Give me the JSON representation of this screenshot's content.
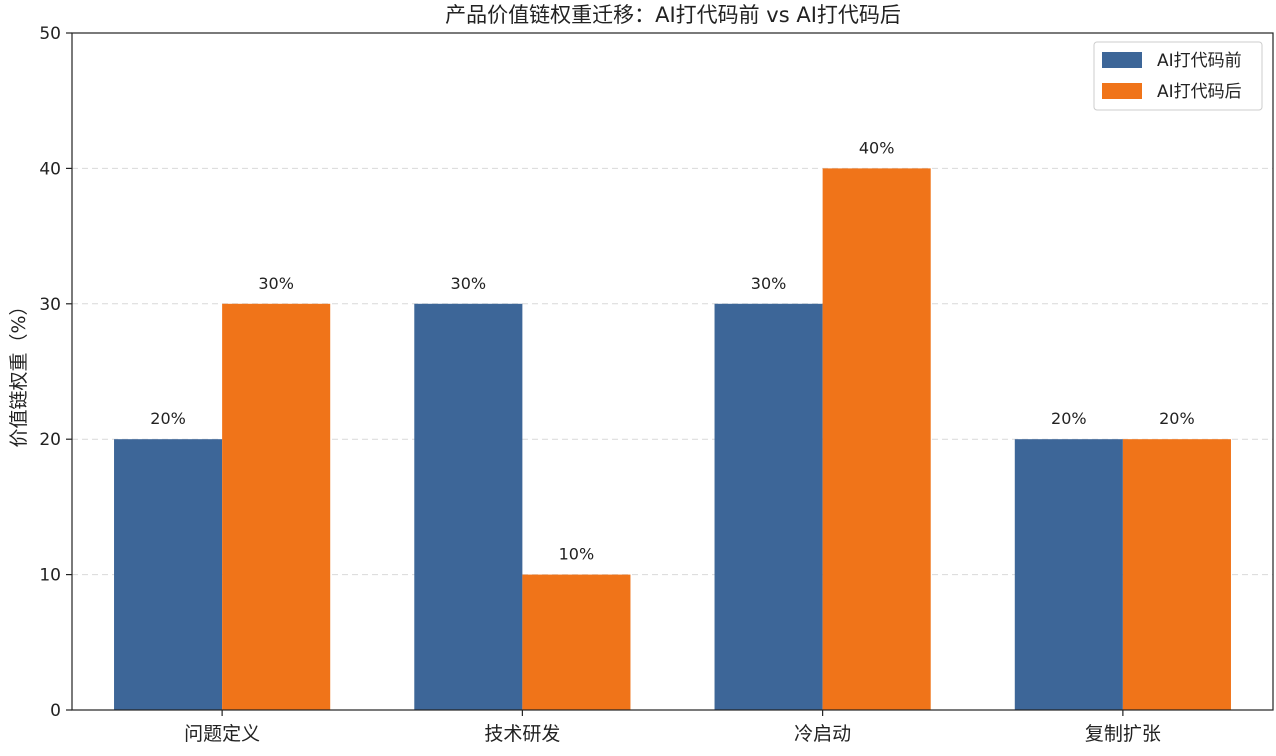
{
  "chart_data": {
    "type": "bar",
    "title": "产品价值链权重迁移：AI打代码前 vs AI打代码后",
    "xlabel": "",
    "ylabel": "价值链权重（%）",
    "categories": [
      "问题定义",
      "技术研发",
      "冷启动",
      "复制扩张"
    ],
    "series": [
      {
        "name": "AI打代码前",
        "values": [
          20,
          30,
          30,
          20
        ],
        "color": "#3d6698"
      },
      {
        "name": "AI打代码后",
        "values": [
          30,
          10,
          40,
          20
        ],
        "color": "#f07419"
      }
    ],
    "ylim": [
      0,
      50
    ],
    "yticks": [
      0,
      10,
      20,
      30,
      40,
      50
    ],
    "data_label_suffix": "%",
    "grid": "horizontal dashed",
    "legend_position": "top-right"
  }
}
